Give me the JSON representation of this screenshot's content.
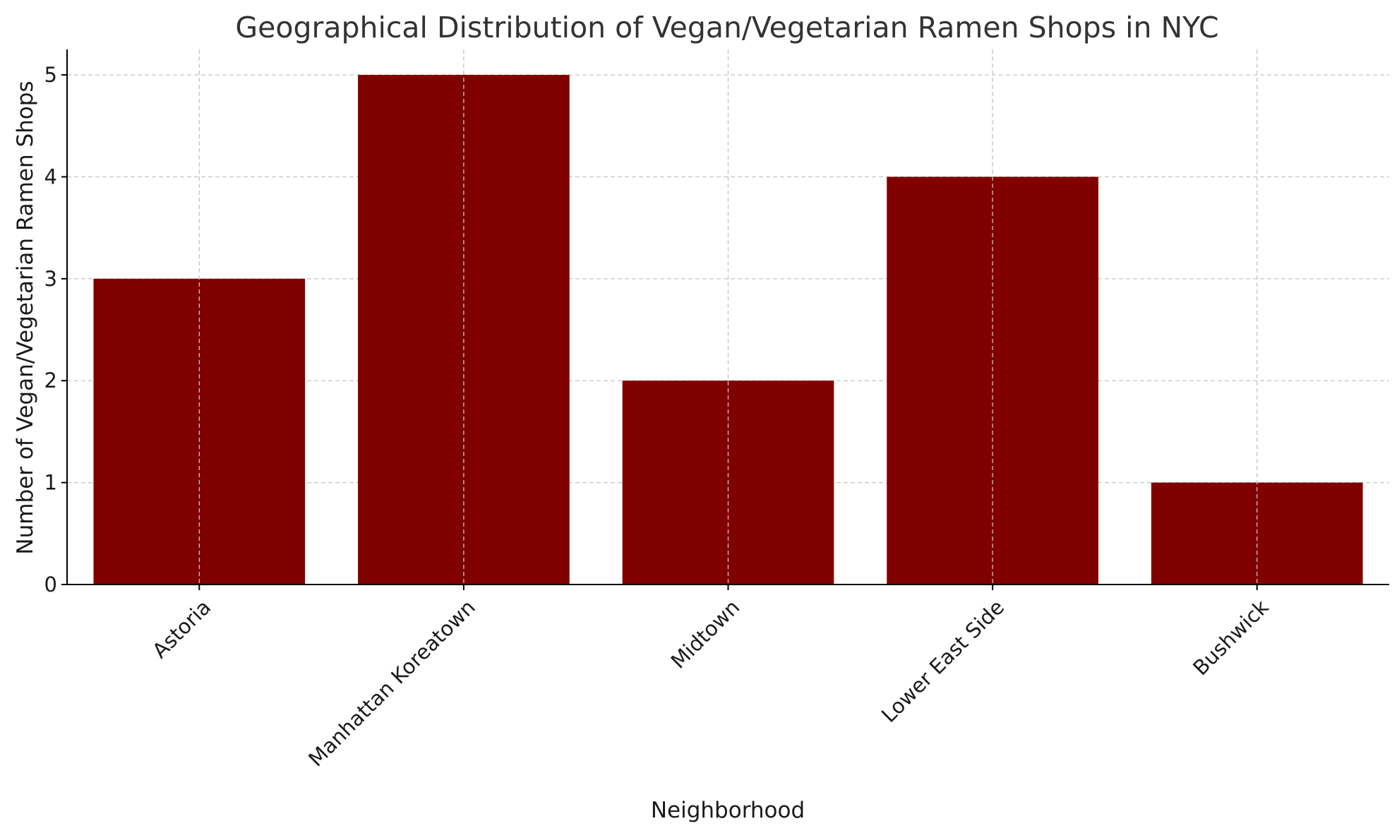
{
  "chart_data": {
    "type": "bar",
    "title": "Geographical Distribution of Vegan/Vegetarian Ramen Shops in NYC",
    "xlabel": "Neighborhood",
    "ylabel": "Number of Vegan/Vegetarian Ramen Shops",
    "categories": [
      "Astoria",
      "Manhattan Koreatown",
      "Midtown",
      "Lower East Side",
      "Bushwick"
    ],
    "values": [
      3,
      5,
      2,
      4,
      1
    ],
    "ylim": [
      0,
      5.25
    ],
    "yticks": [
      0,
      1,
      2,
      3,
      4,
      5
    ],
    "bar_color": "#800000",
    "grid": true,
    "legend": "none"
  }
}
